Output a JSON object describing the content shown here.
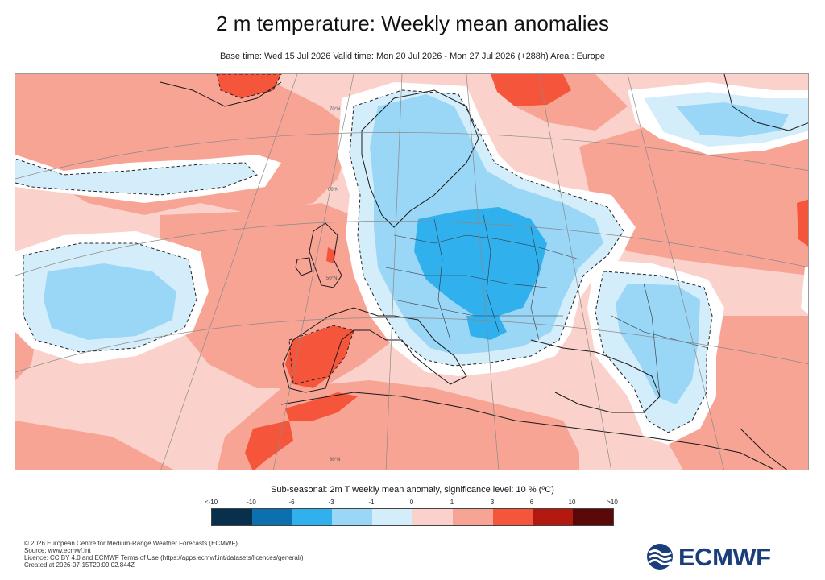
{
  "header": {
    "title": "2 m temperature: Weekly mean anomalies",
    "subtitle": "Base time: Wed 15 Jul 2026 Valid time: Mon 20 Jul 2026 - Mon 27 Jul 2026 (+288h) Area : Europe"
  },
  "map": {
    "area": "Europe",
    "graticule_labels": [
      "70°N",
      "60°N",
      "50°N",
      "30°N"
    ]
  },
  "legend": {
    "title": "Sub-seasonal: 2m T weekly mean anomaly, significance level: 10 % (ºC)",
    "tick_labels": [
      "<-10",
      "-10",
      "-6",
      "-3",
      "-1",
      "0",
      "1",
      "3",
      "6",
      "10",
      ">10"
    ],
    "colors": [
      "#08304d",
      "#0b6fb0",
      "#31b0ee",
      "#9ad6f6",
      "#d4edfb",
      "#fbd2cb",
      "#f7a494",
      "#f5553a",
      "#b4190f",
      "#5b0808"
    ]
  },
  "footer": {
    "lines": [
      "© 2026 European Centre for Medium-Range Weather Forecasts (ECMWF)",
      "Source: www.ecmwf.int",
      "Licence: CC BY 4.0 and ECMWF Terms of Use (https://apps.ecmwf.int/datasets/licences/general/)",
      "Created at 2026-07-15T20:09:02.844Z"
    ]
  },
  "logo": {
    "text": "ECMWF",
    "color": "#1a3d7c"
  }
}
